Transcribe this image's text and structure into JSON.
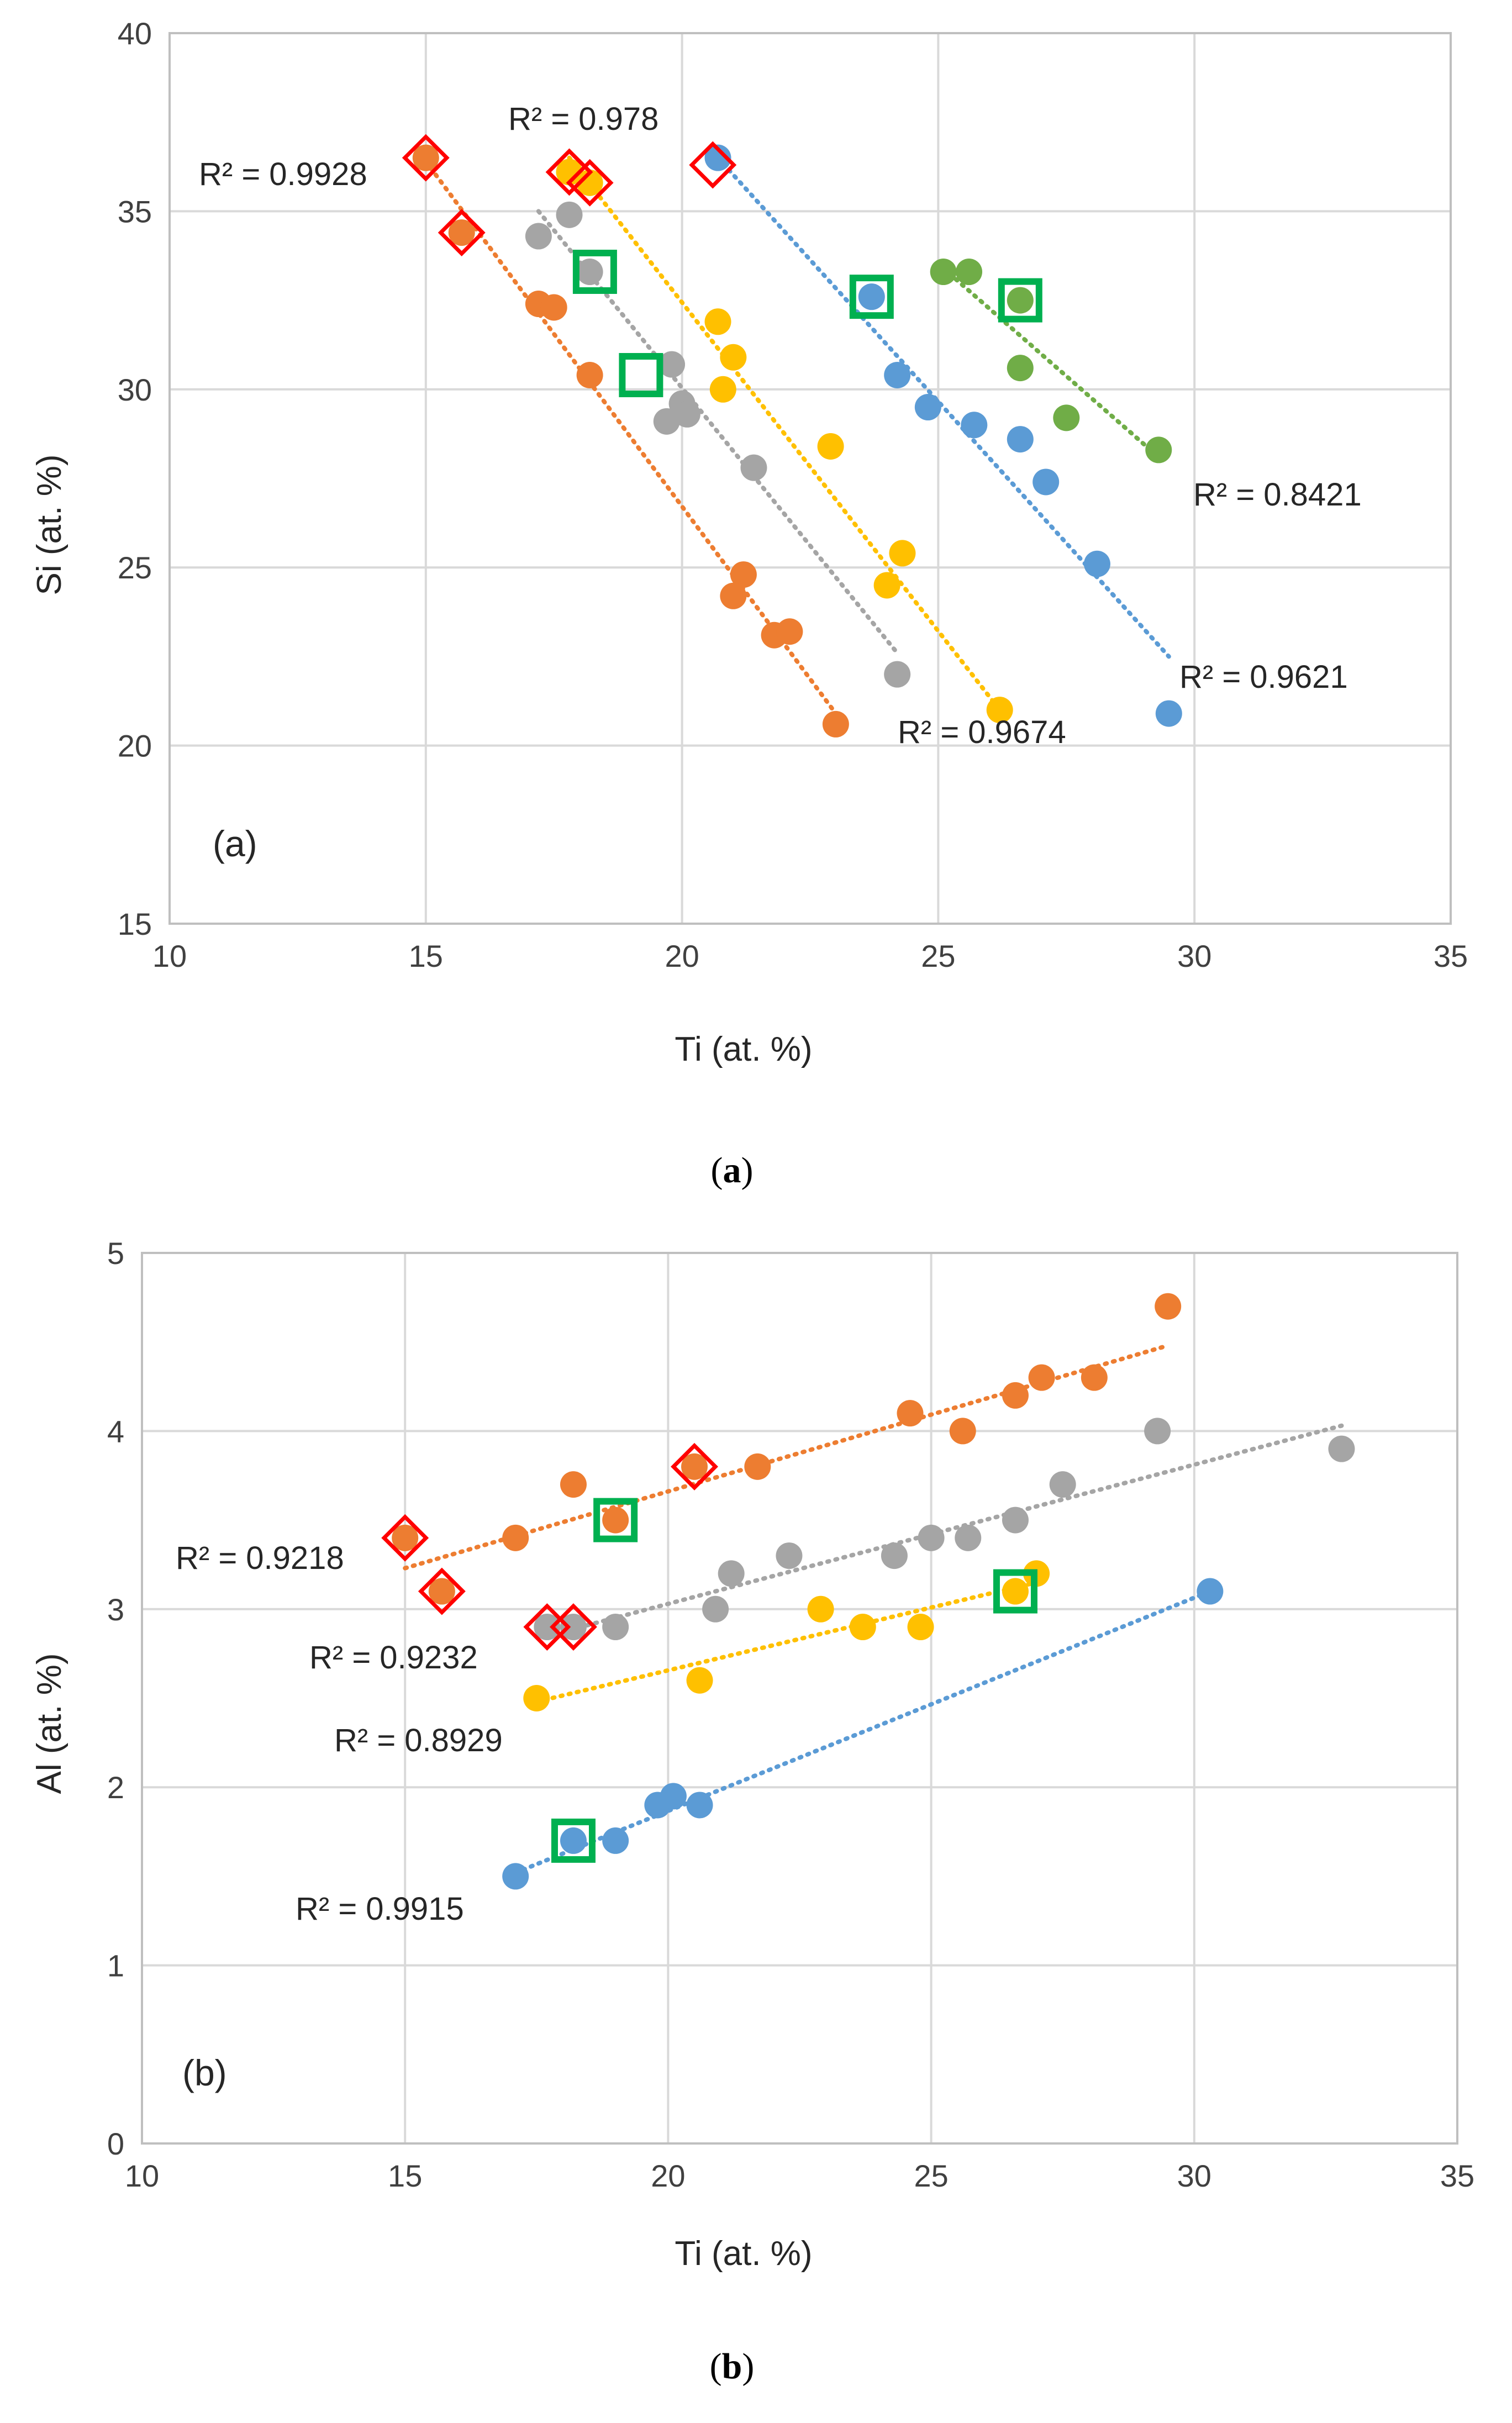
{
  "colors": {
    "blue": "#5B9BD5",
    "orange": "#ED7D31",
    "gray": "#A5A5A5",
    "yellow": "#FFC000",
    "green": "#70AD47",
    "marker_diamond_edge": "#FF0000",
    "marker_square": "#00B050"
  },
  "chart_data": [
    {
      "type": "scatter",
      "panel_label": "(a)",
      "caption": "a",
      "xlabel": "Ti (at. %)",
      "ylabel": "Si (at. %)",
      "xlim": [
        10,
        35
      ],
      "ylim": [
        15,
        40
      ],
      "xticks": [
        10,
        15,
        20,
        25,
        30,
        35
      ],
      "yticks": [
        15,
        20,
        25,
        30,
        35,
        40
      ],
      "grid": true,
      "series": [
        {
          "name": "orange",
          "color": "#ED7D31",
          "points": [
            [
              15.0,
              36.5
            ],
            [
              15.7,
              34.4
            ],
            [
              17.2,
              32.4
            ],
            [
              17.5,
              32.3
            ],
            [
              18.2,
              30.4
            ],
            [
              21.2,
              24.8
            ],
            [
              21.0,
              24.2
            ],
            [
              21.8,
              23.1
            ],
            [
              22.1,
              23.2
            ],
            [
              23.0,
              20.6
            ]
          ],
          "trend": [
            [
              15.0,
              36.4
            ],
            [
              23.0,
              20.9
            ]
          ],
          "r2": "R² = 0.9928"
        },
        {
          "name": "gray",
          "color": "#A5A5A5",
          "points": [
            [
              17.2,
              34.3
            ],
            [
              17.8,
              34.9
            ],
            [
              18.2,
              33.3
            ],
            [
              19.8,
              30.7
            ],
            [
              20.0,
              29.6
            ],
            [
              19.7,
              29.1
            ],
            [
              20.1,
              29.3
            ],
            [
              21.4,
              27.8
            ],
            [
              24.2,
              22.0
            ]
          ],
          "trend": [
            [
              17.2,
              35.0
            ],
            [
              24.2,
              22.6
            ]
          ],
          "r2": "R² = 0.978"
        },
        {
          "name": "yellow",
          "color": "#FFC000",
          "points": [
            [
              17.8,
              36.1
            ],
            [
              18.2,
              35.8
            ],
            [
              20.7,
              31.9
            ],
            [
              21.0,
              30.9
            ],
            [
              20.8,
              30.0
            ],
            [
              22.9,
              28.4
            ],
            [
              24.3,
              25.4
            ],
            [
              24.0,
              24.5
            ],
            [
              26.2,
              21.0
            ]
          ],
          "trend": [
            [
              17.8,
              36.5
            ],
            [
              26.2,
              21.0
            ]
          ],
          "r2": "R² = 0.9674"
        },
        {
          "name": "blue",
          "color": "#5B9BD5",
          "points": [
            [
              20.7,
              36.5
            ],
            [
              23.7,
              32.6
            ],
            [
              24.2,
              30.4
            ],
            [
              24.8,
              29.5
            ],
            [
              25.7,
              29.0
            ],
            [
              26.6,
              28.6
            ],
            [
              27.1,
              27.4
            ],
            [
              28.1,
              25.1
            ],
            [
              29.5,
              20.9
            ]
          ],
          "trend": [
            [
              20.7,
              36.5
            ],
            [
              29.5,
              22.5
            ]
          ],
          "r2": "R² = 0.9621"
        },
        {
          "name": "green",
          "color": "#70AD47",
          "points": [
            [
              25.1,
              33.3
            ],
            [
              25.6,
              33.3
            ],
            [
              26.6,
              32.5
            ],
            [
              26.6,
              30.6
            ],
            [
              27.5,
              29.2
            ],
            [
              29.3,
              28.3
            ]
          ],
          "trend": [
            [
              25.1,
              33.4
            ],
            [
              29.3,
              28.1
            ]
          ],
          "r2": "R² = 0.8421"
        }
      ],
      "highlight_diamonds": [
        [
          15.0,
          36.5
        ],
        [
          15.7,
          34.4
        ],
        [
          17.8,
          36.1
        ],
        [
          18.2,
          35.8
        ],
        [
          20.6,
          36.3
        ]
      ],
      "highlight_squares": [
        [
          18.3,
          33.3
        ],
        [
          19.2,
          30.4
        ],
        [
          23.7,
          32.6
        ],
        [
          26.6,
          32.5
        ]
      ]
    },
    {
      "type": "scatter",
      "panel_label": "(b)",
      "caption": "b",
      "xlabel": "Ti (at. %)",
      "ylabel": "Al (at. %)",
      "xlim": [
        10,
        35
      ],
      "ylim": [
        0,
        5
      ],
      "xticks": [
        10,
        15,
        20,
        25,
        30,
        35
      ],
      "yticks": [
        0,
        1,
        2,
        3,
        4,
        5
      ],
      "grid": true,
      "series": [
        {
          "name": "orange",
          "color": "#ED7D31",
          "points": [
            [
              15.0,
              3.4
            ],
            [
              15.7,
              3.1
            ],
            [
              17.1,
              3.4
            ],
            [
              18.2,
              3.7
            ],
            [
              19.0,
              3.5
            ],
            [
              20.5,
              3.8
            ],
            [
              21.7,
              3.8
            ],
            [
              24.6,
              4.1
            ],
            [
              25.6,
              4.0
            ],
            [
              26.6,
              4.2
            ],
            [
              27.1,
              4.3
            ],
            [
              28.1,
              4.3
            ],
            [
              29.5,
              4.7
            ]
          ],
          "trend": [
            [
              15.0,
              3.23
            ],
            [
              29.5,
              4.48
            ]
          ],
          "r2": "R² = 0.9218"
        },
        {
          "name": "gray",
          "color": "#A5A5A5",
          "points": [
            [
              17.7,
              2.9
            ],
            [
              18.2,
              2.9
            ],
            [
              19.0,
              2.9
            ],
            [
              20.9,
              3.0
            ],
            [
              21.2,
              3.2
            ],
            [
              22.3,
              3.3
            ],
            [
              24.3,
              3.3
            ],
            [
              25.0,
              3.4
            ],
            [
              25.7,
              3.4
            ],
            [
              26.6,
              3.5
            ],
            [
              27.5,
              3.7
            ],
            [
              29.3,
              4.0
            ],
            [
              32.8,
              3.9
            ]
          ],
          "trend": [
            [
              17.7,
              2.85
            ],
            [
              32.8,
              4.03
            ]
          ],
          "r2": "R² = 0.9232"
        },
        {
          "name": "yellow",
          "color": "#FFC000",
          "points": [
            [
              17.5,
              2.5
            ],
            [
              20.6,
              2.6
            ],
            [
              22.9,
              3.0
            ],
            [
              23.7,
              2.9
            ],
            [
              24.8,
              2.9
            ],
            [
              26.6,
              3.1
            ],
            [
              27.0,
              3.2
            ]
          ],
          "trend": [
            [
              17.5,
              2.48
            ],
            [
              27.0,
              3.15
            ]
          ],
          "r2": "R² = 0.8929"
        },
        {
          "name": "blue",
          "color": "#5B9BD5",
          "points": [
            [
              17.1,
              1.5
            ],
            [
              18.2,
              1.7
            ],
            [
              19.0,
              1.7
            ],
            [
              19.8,
              1.9
            ],
            [
              20.1,
              1.95
            ],
            [
              20.6,
              1.9
            ],
            [
              30.3,
              3.1
            ]
          ],
          "trend": [
            [
              17.1,
              1.52
            ],
            [
              30.3,
              3.1
            ]
          ],
          "r2": "R² = 0.9915"
        }
      ],
      "highlight_diamonds": [
        [
          15.0,
          3.4
        ],
        [
          15.7,
          3.1
        ],
        [
          17.7,
          2.9
        ],
        [
          18.2,
          2.9
        ],
        [
          20.5,
          3.8
        ]
      ],
      "highlight_squares": [
        [
          19.0,
          3.5
        ],
        [
          18.2,
          1.7
        ],
        [
          26.6,
          3.1
        ]
      ]
    }
  ]
}
